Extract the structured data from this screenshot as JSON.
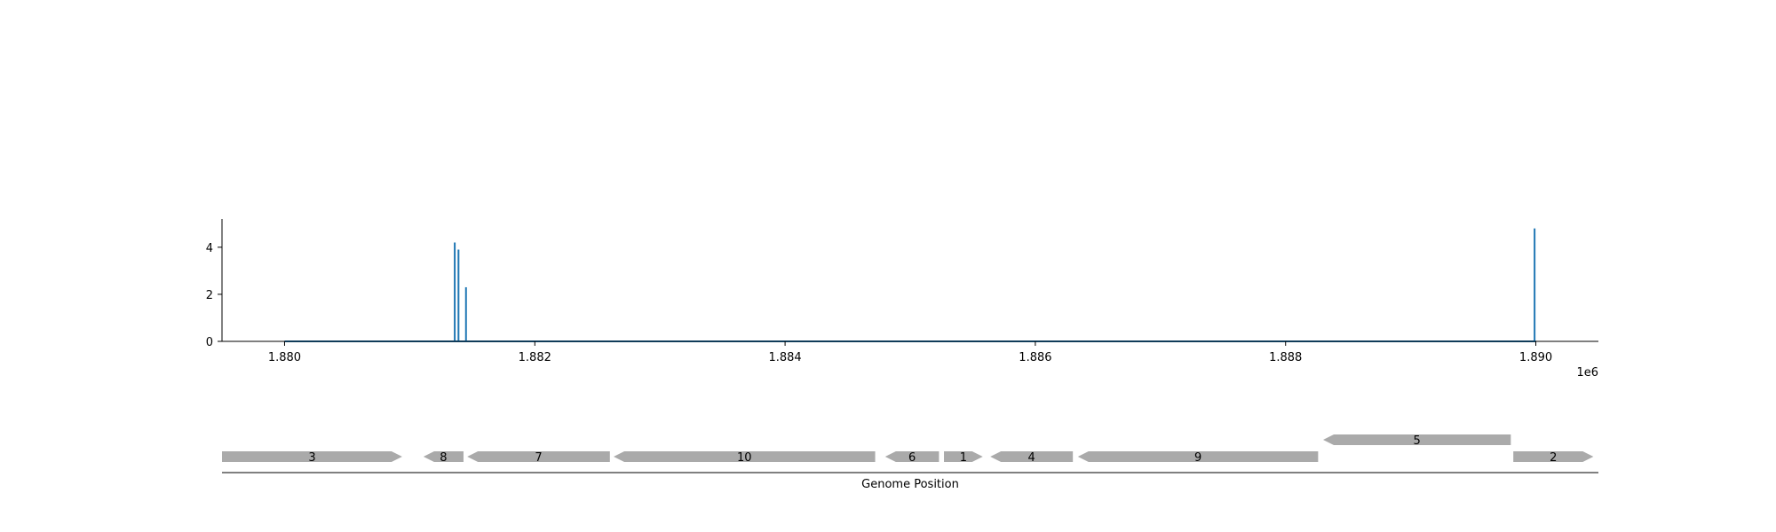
{
  "chart_data": [
    {
      "type": "line",
      "title": "",
      "xlabel": "",
      "ylabel": "",
      "x_offset_label": "1e6",
      "xlim": [
        1879500,
        1890500
      ],
      "ylim": [
        0,
        5.2
      ],
      "x_ticks": [
        1880000,
        1882000,
        1884000,
        1886000,
        1888000,
        1890000
      ],
      "x_tick_labels": [
        "1.880",
        "1.882",
        "1.884",
        "1.886",
        "1.888",
        "1.890"
      ],
      "y_ticks": [
        0,
        2,
        4
      ],
      "y_tick_labels": [
        "0",
        "2",
        "4"
      ],
      "grid": false,
      "line_color": "#1f77b4",
      "baseline": {
        "x_start": 1880000,
        "x_end": 1890000
      },
      "spikes": [
        {
          "x": 1881360,
          "y": 4.2
        },
        {
          "x": 1881390,
          "y": 3.9
        },
        {
          "x": 1881450,
          "y": 2.3
        },
        {
          "x": 1889990,
          "y": 4.8
        }
      ]
    },
    {
      "type": "gene_map",
      "xlabel": "Genome Position",
      "xlim": [
        1879500,
        1890500
      ],
      "feature_color": "#aaaaaa",
      "features": [
        {
          "label": "3",
          "start": 1879500,
          "end": 1880940,
          "strand": "+",
          "track": 0
        },
        {
          "label": "8",
          "start": 1881110,
          "end": 1881430,
          "strand": "-",
          "track": 0
        },
        {
          "label": "7",
          "start": 1881460,
          "end": 1882600,
          "strand": "-",
          "track": 0
        },
        {
          "label": "10",
          "start": 1882630,
          "end": 1884720,
          "strand": "-",
          "track": 0
        },
        {
          "label": "6",
          "start": 1884800,
          "end": 1885230,
          "strand": "-",
          "track": 0
        },
        {
          "label": "1",
          "start": 1885270,
          "end": 1885580,
          "strand": "+",
          "track": 0
        },
        {
          "label": "4",
          "start": 1885640,
          "end": 1886300,
          "strand": "-",
          "track": 0
        },
        {
          "label": "9",
          "start": 1886340,
          "end": 1888260,
          "strand": "-",
          "track": 0
        },
        {
          "label": "5",
          "start": 1888300,
          "end": 1889800,
          "strand": "-",
          "track": 1
        },
        {
          "label": "2",
          "start": 1889820,
          "end": 1890460,
          "strand": "+",
          "track": 0
        }
      ]
    }
  ]
}
